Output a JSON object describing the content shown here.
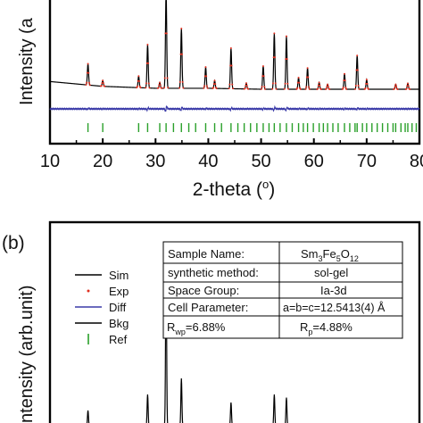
{
  "chart_data": [
    {
      "panel": "a",
      "type": "line",
      "xlabel": "2-theta (o)",
      "xlabel_main": "2-theta (",
      "xlabel_sup": "o",
      "xlabel_close": ")",
      "ylabel": "Intensity (a",
      "xlim": [
        10,
        80
      ],
      "xticks": [
        10,
        20,
        30,
        40,
        50,
        60,
        70,
        80
      ],
      "tick_labels": [
        "10",
        "20",
        "30",
        "40",
        "50",
        "60",
        "70",
        "80"
      ],
      "series": [
        {
          "color": "#000000",
          "x": [
            10,
            20,
            30,
            40,
            50,
            60,
            70,
            80
          ],
          "y": [
            0.15,
            0.1,
            0.08,
            0.08,
            0.07,
            0.07,
            0.07,
            0.07
          ]
        },
        {
          "color": "#e03020"
        },
        {
          "color": "#3a3aa8"
        }
      ],
      "peaks": [
        {
          "x": 17.2,
          "h": 0.22
        },
        {
          "x": 20.0,
          "h": 0.06
        },
        {
          "x": 26.8,
          "h": 0.12
        },
        {
          "x": 28.5,
          "h": 0.45
        },
        {
          "x": 30.8,
          "h": 0.06
        },
        {
          "x": 32.0,
          "h": 1.0
        },
        {
          "x": 34.9,
          "h": 0.62
        },
        {
          "x": 39.5,
          "h": 0.22
        },
        {
          "x": 41.2,
          "h": 0.08
        },
        {
          "x": 44.3,
          "h": 0.42
        },
        {
          "x": 47.2,
          "h": 0.06
        },
        {
          "x": 50.4,
          "h": 0.24
        },
        {
          "x": 52.5,
          "h": 0.58
        },
        {
          "x": 54.8,
          "h": 0.55
        },
        {
          "x": 57.1,
          "h": 0.12
        },
        {
          "x": 58.8,
          "h": 0.22
        },
        {
          "x": 61.0,
          "h": 0.07
        },
        {
          "x": 62.6,
          "h": 0.05
        },
        {
          "x": 65.8,
          "h": 0.16
        },
        {
          "x": 68.2,
          "h": 0.35
        },
        {
          "x": 70.0,
          "h": 0.1
        },
        {
          "x": 75.5,
          "h": 0.05
        },
        {
          "x": 77.8,
          "h": 0.06
        }
      ],
      "ref_ticks": [
        17.2,
        20.0,
        26.8,
        28.5,
        30.8,
        32.0,
        33.4,
        34.9,
        36.3,
        37.6,
        39.5,
        41.2,
        42.5,
        44.3,
        45.6,
        46.8,
        48.0,
        49.2,
        50.4,
        51.5,
        52.5,
        53.6,
        54.8,
        55.9,
        57.1,
        58.0,
        58.8,
        59.9,
        61.0,
        61.8,
        62.6,
        63.6,
        64.6,
        65.8,
        66.8,
        67.8,
        68.2,
        69.2,
        70.0,
        71.0,
        72.0,
        73.0,
        74.0,
        75.0,
        75.5,
        76.5,
        77.3,
        77.8,
        78.6,
        79.4
      ]
    },
    {
      "panel": "b",
      "panel_label": "(b)",
      "type": "line",
      "ylabel": "ntensity (arb.unit)",
      "legend": {
        "position": "top-left",
        "entries": [
          {
            "label": "Sim",
            "symbol": "line",
            "color": "#000000"
          },
          {
            "label": "Exp",
            "symbol": "dot",
            "color": "#e03020"
          },
          {
            "label": "Diff",
            "symbol": "line",
            "color": "#3a3aa8"
          },
          {
            "label": "Bkg",
            "symbol": "line",
            "color": "#000000"
          },
          {
            "label": "Ref",
            "symbol": "bar",
            "color": "#2aa02a"
          }
        ]
      },
      "peaks": [
        {
          "x": 17.2,
          "h": 0.1
        },
        {
          "x": 28.5,
          "h": 0.2
        },
        {
          "x": 32.0,
          "h": 1.0
        },
        {
          "x": 34.9,
          "h": 0.3
        },
        {
          "x": 44.3,
          "h": 0.15
        },
        {
          "x": 52.5,
          "h": 0.2
        },
        {
          "x": 54.8,
          "h": 0.18
        }
      ],
      "table": {
        "rows": [
          {
            "label": "Sample Name:",
            "value_main": "Sm",
            "value_parts": [
              {
                "t": "Sm",
                "sub": "3"
              },
              {
                "t": "Fe",
                "sub": "5"
              },
              {
                "t": "O",
                "sub": "12"
              }
            ]
          },
          {
            "label": "synthetic method:",
            "value": "sol-gel"
          },
          {
            "label": "Space Group:",
            "value": "Ia-3d"
          },
          {
            "label": "Cell Parameter:",
            "value": "a=b=c=12.5413(4) Å"
          }
        ],
        "r_factors": {
          "rwp_main": "R",
          "rwp_sub": "wp",
          "rwp_value": "=6.88%",
          "rp_main": "R",
          "rp_sub": "p",
          "rp_value": "=4.88%"
        }
      }
    }
  ]
}
